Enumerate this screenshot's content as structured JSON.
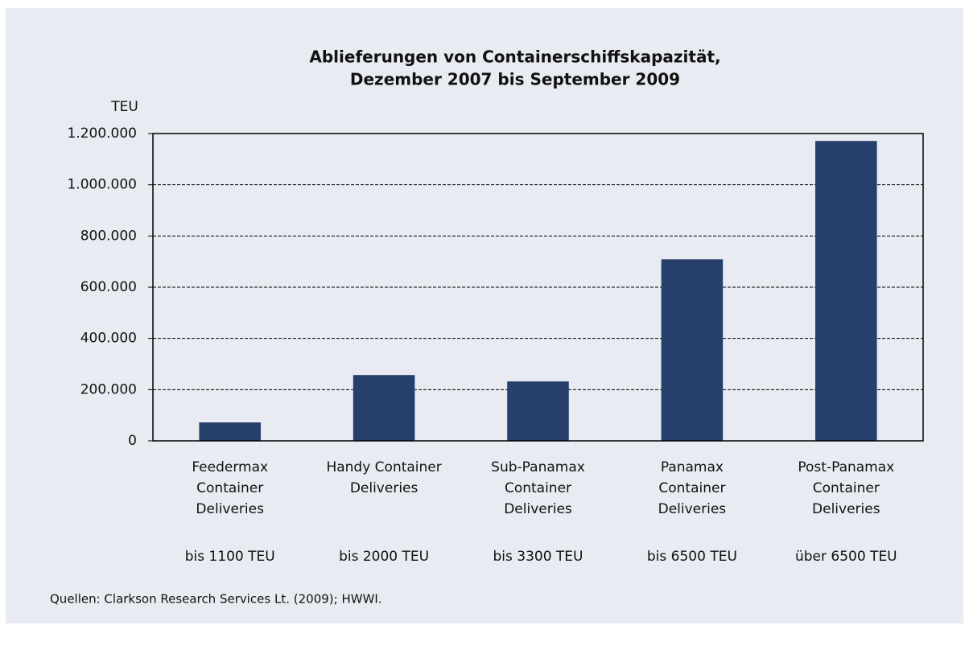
{
  "chart_data": {
    "type": "bar",
    "title": [
      "Ablieferungen von Containerschiffskapazität,",
      "Dezember  2007 bis September  2009"
    ],
    "y_label": "TEU",
    "categories": [
      [
        "Feedermax",
        "Container",
        "Deliveries"
      ],
      [
        "Handy Container",
        "Deliveries"
      ],
      [
        "Sub-Panamax",
        "Container",
        "Deliveries"
      ],
      [
        "Panamax",
        "Container",
        "Deliveries"
      ],
      [
        "Post-Panamax",
        "Container",
        "Deliveries"
      ]
    ],
    "category_notes": [
      "bis 1100 TEU",
      "bis 2000 TEU",
      "bis 3300 TEU",
      "bis 6500 TEU",
      "über 6500 TEU"
    ],
    "values": [
      72000,
      257000,
      232000,
      709000,
      1171000
    ],
    "color": "#263f6b",
    "ylim": [
      0,
      1200000
    ],
    "yticks": [
      0,
      {
        "value": 200000,
        "label": "200.000"
      },
      {
        "value": 400000,
        "label": "400.000"
      },
      {
        "value": 600000,
        "label": "600.000"
      },
      {
        "value": 800000,
        "label": "800.000"
      },
      {
        "value": 1000000,
        "label": "1.000.000"
      },
      {
        "value": 1200000,
        "label": "1.200.000"
      }
    ],
    "grid": true,
    "source": "Quellen: Clarkson Research Services Lt. (2009); HWWI."
  }
}
